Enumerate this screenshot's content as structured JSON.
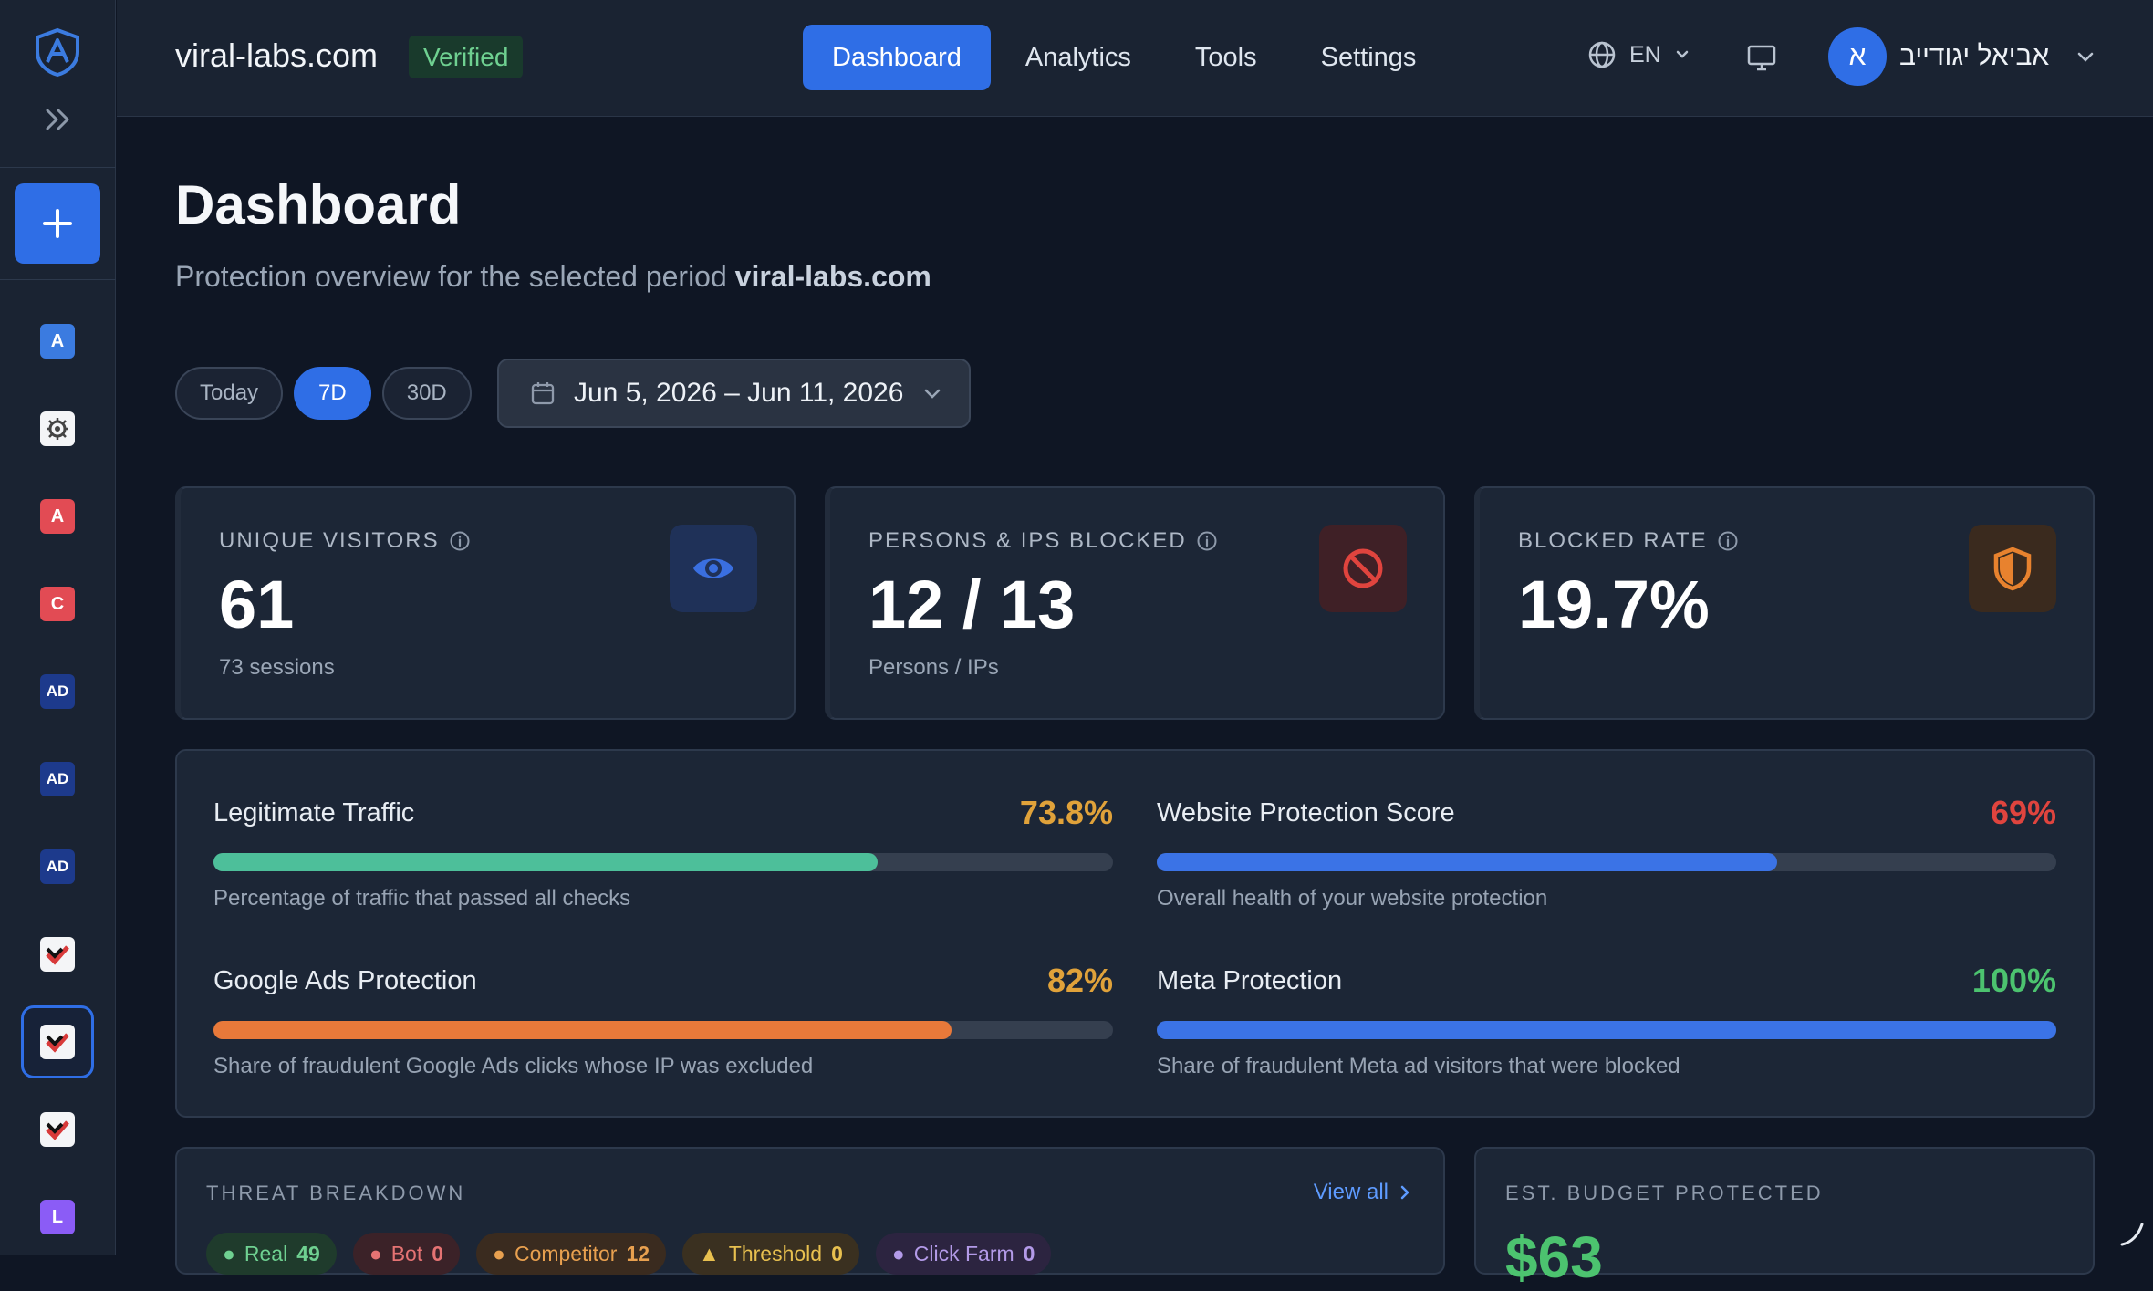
{
  "header": {
    "site_name": "viral-labs.com",
    "verified_badge": "Verified",
    "nav": [
      "Dashboard",
      "Analytics",
      "Tools",
      "Settings"
    ],
    "active_nav": "Dashboard",
    "language": "EN",
    "user": {
      "initial": "א",
      "name": "אביאל יגודייב"
    }
  },
  "sidebar": {
    "items": [
      {
        "label": "A",
        "color": "#3b7be0"
      },
      {
        "label": "",
        "color": "#f4f5f7",
        "icon": "gear-badge-icon"
      },
      {
        "label": "A",
        "color": "#e24b54"
      },
      {
        "label": "C",
        "color": "#e24b54"
      },
      {
        "label": "AD",
        "color": "#1d3a8c"
      },
      {
        "label": "AD",
        "color": "#1d3a8c"
      },
      {
        "label": "AD",
        "color": "#1d3a8c"
      },
      {
        "label": "",
        "color": "#f4f5f7",
        "icon": "checkmark-logo-icon"
      },
      {
        "label": "",
        "color": "#f4f5f7",
        "icon": "checkmark-logo-icon",
        "active": true
      },
      {
        "label": "",
        "color": "#f4f5f7",
        "icon": "checkmark-logo-icon"
      },
      {
        "label": "L",
        "color": "#8b5cf6"
      }
    ]
  },
  "page": {
    "title": "Dashboard",
    "subtitle": "Protection overview for the selected period",
    "subtitle_site": "viral-labs.com",
    "periods": [
      "Today",
      "7D",
      "30D"
    ],
    "active_period": "7D",
    "date_range": "Jun 5, 2026 – Jun 11, 2026"
  },
  "stats": {
    "visitors": {
      "label": "UNIQUE VISITORS",
      "value": "61",
      "sub": "73 sessions"
    },
    "blocked": {
      "label": "PERSONS & IPS BLOCKED",
      "value": "12 / 13",
      "sub": "Persons / IPs"
    },
    "rate": {
      "label": "BLOCKED RATE",
      "value": "19.7%"
    }
  },
  "metrics": {
    "legit": {
      "title": "Legitimate Traffic",
      "value": "73.8%",
      "fraction": 0.738,
      "desc": "Percentage of traffic that passed all checks",
      "color": "#4dbf9a",
      "value_color": "#e0a23a"
    },
    "score": {
      "title": "Website Protection Score",
      "value": "69%",
      "fraction": 0.69,
      "desc": "Overall health of your website protection",
      "color": "#3b73e6",
      "value_color": "#e0443e"
    },
    "google": {
      "title": "Google Ads Protection",
      "value": "82%",
      "fraction": 0.82,
      "desc": "Share of fraudulent Google Ads clicks whose IP was excluded",
      "color": "#e8793a",
      "value_color": "#e0a23a"
    },
    "meta": {
      "title": "Meta Protection",
      "value": "100%",
      "fraction": 1.0,
      "desc": "Share of fraudulent Meta ad visitors that were blocked",
      "color": "#3b73e6",
      "value_color": "#4cc36f"
    }
  },
  "threats": {
    "title": "THREAT BREAKDOWN",
    "view_all": "View all",
    "chips": [
      {
        "label": "Real",
        "count": "49"
      },
      {
        "label": "Bot",
        "count": "0"
      },
      {
        "label": "Competitor",
        "count": "12"
      },
      {
        "label": "Threshold",
        "count": "0"
      },
      {
        "label": "Click Farm",
        "count": "0"
      }
    ]
  },
  "budget": {
    "title": "EST. BUDGET PROTECTED",
    "value": "$63"
  }
}
